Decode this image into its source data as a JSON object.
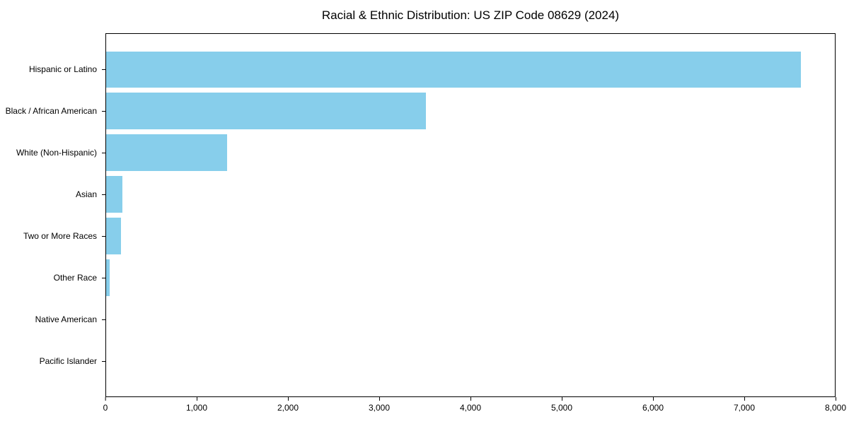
{
  "chart_data": {
    "type": "bar",
    "orientation": "horizontal",
    "title": "Racial & Ethnic Distribution: US ZIP Code 08629 (2024)",
    "categories": [
      "Hispanic or Latino",
      "Black / African American",
      "White (Non-Hispanic)",
      "Asian",
      "Two or More Races",
      "Other Race",
      "Native American",
      "Pacific Islander"
    ],
    "values": [
      7630,
      3510,
      1330,
      180,
      165,
      40,
      0,
      0
    ],
    "xlabel": "",
    "ylabel": "",
    "xlim": [
      0,
      8000
    ],
    "xticks": [
      0,
      1000,
      2000,
      3000,
      4000,
      5000,
      6000,
      7000,
      8000
    ],
    "xtick_labels": [
      "0",
      "1,000",
      "2,000",
      "3,000",
      "4,000",
      "5,000",
      "6,000",
      "7,000",
      "8,000"
    ],
    "bar_color": "#87CEEB",
    "frame_color": "#000000",
    "text_color": "#000000",
    "grid": false,
    "legend_position": "none",
    "background_color": "#ffffff"
  }
}
